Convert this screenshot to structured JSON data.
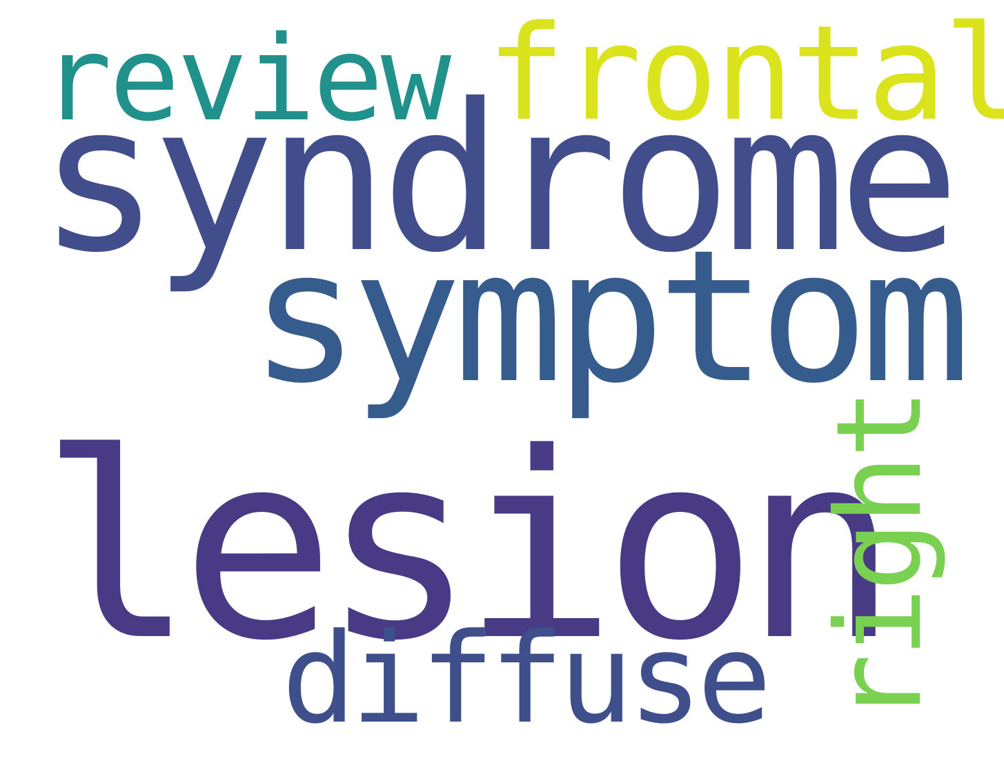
{
  "words": [
    {
      "text": "lesion",
      "color": "#483a84"
    },
    {
      "text": "syndrome",
      "color": "#424e8c"
    },
    {
      "text": "symptom",
      "color": "#355c8d"
    },
    {
      "text": "diffuse",
      "color": "#3f4f8c"
    },
    {
      "text": "review",
      "color": "#21918c"
    },
    {
      "text": "frontal",
      "color": "#dbe31c"
    },
    {
      "text": "right",
      "color": "#7ad151"
    }
  ]
}
